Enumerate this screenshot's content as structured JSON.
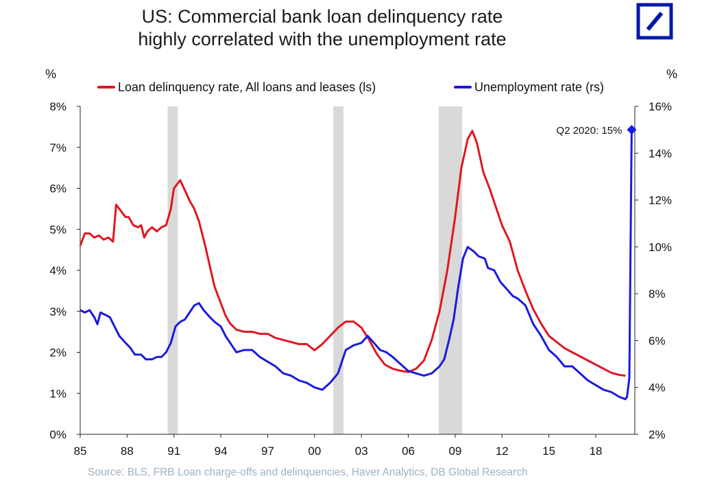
{
  "title_line1": "US: Commercial bank loan delinquency rate",
  "title_line2": "highly correlated with the unemployment rate",
  "logo_icon": "deutsche-bank-logo",
  "colors": {
    "loan": "#e0161f",
    "unemployment": "#1a1adc",
    "recession": "#d9d9d9",
    "logo": "#0018a8",
    "source": "#9fb0c4"
  },
  "left_unit": "%",
  "right_unit": "%",
  "source": "Source: BLS, FRB Loan charge-offs and delinquencies, Haver Analytics, DB Global  Research",
  "chart_data": {
    "type": "line",
    "x_axis": {
      "range": [
        1985,
        2020.5
      ],
      "ticks": [
        1985,
        1988,
        1991,
        1994,
        1997,
        2000,
        2003,
        2006,
        2009,
        2012,
        2015,
        2018
      ],
      "tick_labels": [
        "85",
        "88",
        "91",
        "94",
        "97",
        "00",
        "03",
        "06",
        "09",
        "12",
        "15",
        "18"
      ]
    },
    "y_left": {
      "range": [
        0,
        8
      ],
      "ticks": [
        0,
        1,
        2,
        3,
        4,
        5,
        6,
        7,
        8
      ],
      "tick_labels": [
        "0%",
        "1%",
        "2%",
        "3%",
        "4%",
        "5%",
        "6%",
        "7%",
        "8%"
      ]
    },
    "y_right": {
      "range": [
        2,
        16
      ],
      "ticks": [
        2,
        4,
        6,
        8,
        10,
        12,
        14,
        16
      ],
      "tick_labels": [
        "2%",
        "4%",
        "6%",
        "8%",
        "10%",
        "12%",
        "14%",
        "16%"
      ]
    },
    "recessions": [
      [
        1990.6,
        1991.25
      ],
      [
        2001.2,
        2001.85
      ],
      [
        2007.95,
        2009.45
      ]
    ],
    "grid": false,
    "legend_position": "top",
    "series": [
      {
        "name": "Loan delinquency rate, All loans and leases (ls)",
        "axis": "left",
        "points": [
          [
            1985.0,
            4.6
          ],
          [
            1985.3,
            4.9
          ],
          [
            1985.6,
            4.9
          ],
          [
            1985.9,
            4.8
          ],
          [
            1986.2,
            4.85
          ],
          [
            1986.5,
            4.75
          ],
          [
            1986.8,
            4.8
          ],
          [
            1987.1,
            4.7
          ],
          [
            1987.3,
            5.6
          ],
          [
            1987.6,
            5.45
          ],
          [
            1987.9,
            5.3
          ],
          [
            1988.1,
            5.3
          ],
          [
            1988.4,
            5.1
          ],
          [
            1988.7,
            5.05
          ],
          [
            1988.9,
            5.1
          ],
          [
            1989.1,
            4.8
          ],
          [
            1989.3,
            4.95
          ],
          [
            1989.6,
            5.05
          ],
          [
            1989.9,
            4.95
          ],
          [
            1990.2,
            5.05
          ],
          [
            1990.5,
            5.1
          ],
          [
            1990.8,
            5.5
          ],
          [
            1991.0,
            6.0
          ],
          [
            1991.2,
            6.1
          ],
          [
            1991.4,
            6.2
          ],
          [
            1991.7,
            5.95
          ],
          [
            1992.0,
            5.7
          ],
          [
            1992.3,
            5.5
          ],
          [
            1992.6,
            5.2
          ],
          [
            1993.0,
            4.6
          ],
          [
            1993.3,
            4.1
          ],
          [
            1993.6,
            3.6
          ],
          [
            1994.0,
            3.2
          ],
          [
            1994.3,
            2.9
          ],
          [
            1994.6,
            2.7
          ],
          [
            1995.0,
            2.55
          ],
          [
            1995.5,
            2.5
          ],
          [
            1996.0,
            2.5
          ],
          [
            1996.5,
            2.45
          ],
          [
            1997.0,
            2.45
          ],
          [
            1997.5,
            2.35
          ],
          [
            1998.0,
            2.3
          ],
          [
            1998.5,
            2.25
          ],
          [
            1999.0,
            2.2
          ],
          [
            1999.5,
            2.2
          ],
          [
            2000.0,
            2.05
          ],
          [
            2000.5,
            2.2
          ],
          [
            2001.0,
            2.4
          ],
          [
            2001.5,
            2.6
          ],
          [
            2002.0,
            2.75
          ],
          [
            2002.5,
            2.75
          ],
          [
            2003.0,
            2.6
          ],
          [
            2003.5,
            2.3
          ],
          [
            2004.0,
            1.95
          ],
          [
            2004.5,
            1.7
          ],
          [
            2005.0,
            1.6
          ],
          [
            2005.5,
            1.55
          ],
          [
            2006.0,
            1.52
          ],
          [
            2006.5,
            1.6
          ],
          [
            2007.0,
            1.8
          ],
          [
            2007.5,
            2.3
          ],
          [
            2008.0,
            3.0
          ],
          [
            2008.5,
            4.0
          ],
          [
            2009.0,
            5.3
          ],
          [
            2009.4,
            6.5
          ],
          [
            2009.8,
            7.2
          ],
          [
            2010.1,
            7.4
          ],
          [
            2010.4,
            7.1
          ],
          [
            2010.8,
            6.4
          ],
          [
            2011.2,
            6.0
          ],
          [
            2011.6,
            5.55
          ],
          [
            2012.0,
            5.1
          ],
          [
            2012.5,
            4.7
          ],
          [
            2013.0,
            4.0
          ],
          [
            2013.5,
            3.5
          ],
          [
            2014.0,
            3.05
          ],
          [
            2014.5,
            2.7
          ],
          [
            2015.0,
            2.4
          ],
          [
            2015.5,
            2.25
          ],
          [
            2016.0,
            2.1
          ],
          [
            2016.5,
            2.0
          ],
          [
            2017.0,
            1.9
          ],
          [
            2017.5,
            1.8
          ],
          [
            2018.0,
            1.7
          ],
          [
            2018.5,
            1.6
          ],
          [
            2019.0,
            1.5
          ],
          [
            2019.5,
            1.45
          ],
          [
            2019.9,
            1.43
          ]
        ]
      },
      {
        "name": "Unemployment rate (rs)",
        "axis": "right",
        "points": [
          [
            1985.0,
            7.3
          ],
          [
            1985.3,
            7.2
          ],
          [
            1985.6,
            7.3
          ],
          [
            1985.9,
            7.0
          ],
          [
            1986.1,
            6.7
          ],
          [
            1986.3,
            7.2
          ],
          [
            1986.6,
            7.1
          ],
          [
            1986.9,
            7.0
          ],
          [
            1987.2,
            6.6
          ],
          [
            1987.5,
            6.2
          ],
          [
            1987.9,
            5.9
          ],
          [
            1988.2,
            5.7
          ],
          [
            1988.5,
            5.4
          ],
          [
            1988.9,
            5.4
          ],
          [
            1989.2,
            5.2
          ],
          [
            1989.6,
            5.2
          ],
          [
            1989.9,
            5.3
          ],
          [
            1990.2,
            5.3
          ],
          [
            1990.5,
            5.5
          ],
          [
            1990.8,
            5.9
          ],
          [
            1991.1,
            6.6
          ],
          [
            1991.4,
            6.8
          ],
          [
            1991.7,
            6.9
          ],
          [
            1992.0,
            7.2
          ],
          [
            1992.3,
            7.5
          ],
          [
            1992.6,
            7.6
          ],
          [
            1992.9,
            7.3
          ],
          [
            1993.3,
            7.0
          ],
          [
            1993.6,
            6.8
          ],
          [
            1994.0,
            6.6
          ],
          [
            1994.3,
            6.2
          ],
          [
            1994.6,
            5.9
          ],
          [
            1995.0,
            5.5
          ],
          [
            1995.5,
            5.6
          ],
          [
            1996.0,
            5.6
          ],
          [
            1996.5,
            5.3
          ],
          [
            1997.0,
            5.1
          ],
          [
            1997.5,
            4.9
          ],
          [
            1998.0,
            4.6
          ],
          [
            1998.5,
            4.5
          ],
          [
            1999.0,
            4.3
          ],
          [
            1999.5,
            4.2
          ],
          [
            2000.0,
            4.0
          ],
          [
            2000.5,
            3.9
          ],
          [
            2001.0,
            4.2
          ],
          [
            2001.5,
            4.6
          ],
          [
            2002.0,
            5.6
          ],
          [
            2002.5,
            5.8
          ],
          [
            2003.0,
            5.9
          ],
          [
            2003.4,
            6.2
          ],
          [
            2003.8,
            5.9
          ],
          [
            2004.2,
            5.6
          ],
          [
            2004.6,
            5.5
          ],
          [
            2005.0,
            5.3
          ],
          [
            2005.5,
            5.0
          ],
          [
            2006.0,
            4.7
          ],
          [
            2006.5,
            4.6
          ],
          [
            2007.0,
            4.5
          ],
          [
            2007.5,
            4.6
          ],
          [
            2008.0,
            4.9
          ],
          [
            2008.3,
            5.2
          ],
          [
            2008.6,
            6.0
          ],
          [
            2008.9,
            6.9
          ],
          [
            2009.2,
            8.3
          ],
          [
            2009.5,
            9.5
          ],
          [
            2009.8,
            10.0
          ],
          [
            2010.2,
            9.8
          ],
          [
            2010.5,
            9.6
          ],
          [
            2010.9,
            9.5
          ],
          [
            2011.1,
            9.1
          ],
          [
            2011.5,
            9.0
          ],
          [
            2011.9,
            8.5
          ],
          [
            2012.3,
            8.2
          ],
          [
            2012.7,
            7.9
          ],
          [
            2013.0,
            7.8
          ],
          [
            2013.5,
            7.5
          ],
          [
            2014.0,
            6.7
          ],
          [
            2014.5,
            6.2
          ],
          [
            2015.0,
            5.6
          ],
          [
            2015.5,
            5.3
          ],
          [
            2016.0,
            4.9
          ],
          [
            2016.5,
            4.9
          ],
          [
            2017.0,
            4.6
          ],
          [
            2017.5,
            4.3
          ],
          [
            2018.0,
            4.1
          ],
          [
            2018.5,
            3.9
          ],
          [
            2019.0,
            3.8
          ],
          [
            2019.5,
            3.6
          ],
          [
            2019.9,
            3.5
          ],
          [
            2020.0,
            3.6
          ],
          [
            2020.15,
            4.4
          ],
          [
            2020.3,
            15.0
          ]
        ]
      }
    ],
    "annotation": {
      "text": "Q2 2020: 15%",
      "x": 2020.3,
      "y": 15.0,
      "axis": "right"
    }
  }
}
